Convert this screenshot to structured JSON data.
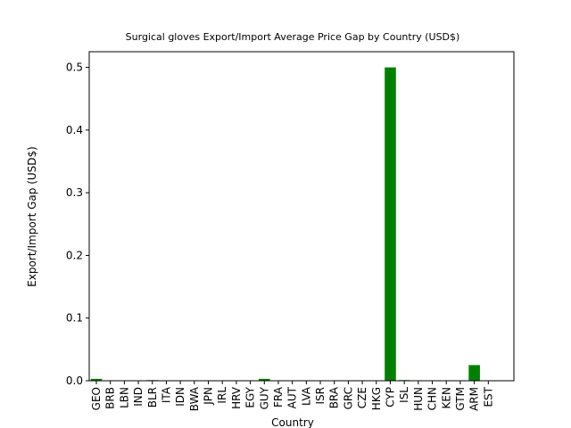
{
  "chart_data": {
    "type": "bar",
    "title": "Surgical gloves Export/Import Average Price Gap by Country (USD$)",
    "x_label": "Country",
    "y_label": "Export/Import Gap (USD$)",
    "categories": [
      "GEO",
      "BRB",
      "LBN",
      "IND",
      "BLR",
      "ITA",
      "IDN",
      "BWA",
      "JPN",
      "IRL",
      "HRV",
      "EGY",
      "GUY",
      "FRA",
      "AUT",
      "LVA",
      "ISR",
      "BRA",
      "GRC",
      "CZE",
      "HKG",
      "CYP",
      "ISL",
      "HUN",
      "CHN",
      "KEN",
      "GTM",
      "ARM",
      "EST"
    ],
    "values": [
      0.003,
      0,
      0,
      0,
      0.001,
      0,
      0,
      0,
      0,
      0,
      0,
      0,
      0.003,
      0,
      0,
      0,
      0,
      0,
      0,
      0,
      0,
      0.5,
      0.001,
      0,
      0,
      0,
      0,
      0.025,
      0
    ],
    "color": "#008000",
    "ylim": [
      0,
      0.525
    ],
    "yticks": [
      {
        "value": 0,
        "label": "0.0"
      },
      {
        "value": 0.1,
        "label": "0.1"
      },
      {
        "value": 0.2,
        "label": "0.2"
      },
      {
        "value": 0.3,
        "label": "0.3"
      },
      {
        "value": 0.4,
        "label": "0.4"
      },
      {
        "value": 0.5,
        "label": "0.5"
      }
    ],
    "grid": false
  }
}
